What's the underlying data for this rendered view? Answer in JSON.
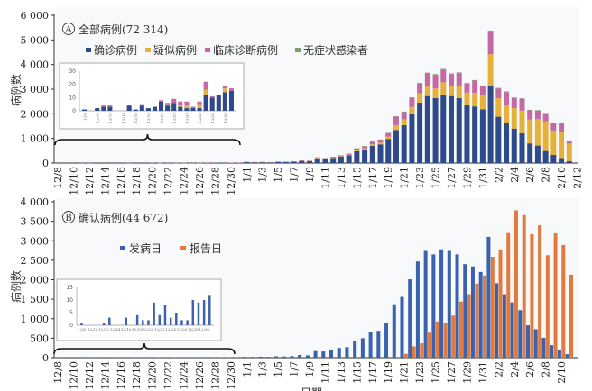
{
  "chart_data": [
    {
      "type": "bar",
      "stacked": true,
      "panel_letter": "A",
      "title": "全部病例(72 314)",
      "ylabel": "病例数",
      "ylim": [
        0,
        6000
      ],
      "yticks": [
        "0",
        "1 000",
        "2 000",
        "3 000",
        "4 000",
        "5 000",
        "6 000"
      ],
      "xticks": [
        "12/8",
        "12/10",
        "12/12",
        "12/14",
        "12/16",
        "12/18",
        "12/20",
        "12/22",
        "12/24",
        "12/26",
        "12/28",
        "12/30",
        "1/1",
        "1/3",
        "1/5",
        "1/7",
        "1/9",
        "1/11",
        "1/13",
        "1/15",
        "1/17",
        "1/19",
        "1/21",
        "1/23",
        "1/25",
        "1/27",
        "1/29",
        "1/31",
        "2/2",
        "2/4",
        "2/6",
        "2/8",
        "2/10",
        "2/12"
      ],
      "legend_position": "top",
      "series": [
        {
          "name": "确诊病例",
          "color": "#2f4a8a",
          "values": [
            1,
            0,
            2,
            3,
            3,
            0,
            0,
            4,
            1,
            4,
            2,
            3,
            7,
            4,
            6,
            3,
            2,
            2,
            2,
            12,
            10,
            12,
            14,
            15,
            40,
            32,
            36,
            24,
            48,
            44,
            56,
            88,
            80,
            190,
            165,
            205,
            255,
            310,
            480,
            550,
            700,
            760,
            980,
            1340,
            1540,
            1980,
            2450,
            2720,
            2640,
            2780,
            2720,
            2640,
            2380,
            2300,
            2180,
            3120,
            1880,
            1610,
            1400,
            1210,
            800,
            710,
            490,
            330,
            200,
            80
          ]
        },
        {
          "name": "疑似病例",
          "color": "#e6b03c",
          "values": [
            0,
            0,
            0,
            0,
            0,
            0,
            0,
            0,
            0,
            0,
            0,
            0,
            0,
            1,
            0,
            1,
            2,
            0,
            3,
            4,
            0,
            0,
            3,
            0,
            3,
            2,
            3,
            2,
            4,
            3,
            5,
            8,
            7,
            15,
            12,
            15,
            20,
            25,
            40,
            50,
            60,
            70,
            90,
            200,
            230,
            300,
            380,
            420,
            390,
            500,
            400,
            480,
            480,
            550,
            580,
            1300,
            750,
            760,
            830,
            920,
            970,
            1070,
            1200,
            990,
            1080,
            710
          ]
        },
        {
          "name": "临床诊断病例",
          "color": "#c36aa5",
          "values": [
            0,
            0,
            0,
            1,
            1,
            0,
            0,
            0,
            0,
            1,
            0,
            0,
            1,
            1,
            3,
            3,
            3,
            1,
            2,
            6,
            1,
            0,
            2,
            2,
            7,
            6,
            6,
            4,
            8,
            8,
            9,
            14,
            13,
            25,
            23,
            30,
            35,
            45,
            70,
            80,
            110,
            120,
            150,
            340,
            300,
            365,
            390,
            500,
            550,
            510,
            495,
            535,
            365,
            495,
            370,
            930,
            395,
            515,
            405,
            480,
            370,
            350,
            320,
            300,
            340,
            90
          ]
        },
        {
          "name": "无症状感染者",
          "color": "#7f9b6b",
          "values": [
            0,
            0,
            0,
            0,
            0,
            0,
            0,
            0,
            0,
            0,
            0,
            0,
            0,
            0,
            0,
            0,
            0,
            0,
            0,
            0,
            0,
            0,
            0,
            0,
            0,
            0,
            0,
            0,
            0,
            0,
            0,
            0,
            0,
            2,
            2,
            2,
            3,
            3,
            5,
            5,
            6,
            6,
            8,
            20,
            20,
            25,
            30,
            30,
            30,
            30,
            25,
            25,
            25,
            25,
            20,
            30,
            25,
            25,
            25,
            20,
            20,
            20,
            20,
            20,
            20,
            10
          ]
        }
      ],
      "inset": {
        "ylim": [
          0,
          30
        ],
        "yticks": [
          "0",
          "10",
          "20",
          "30"
        ],
        "xticks": [
          "12/8",
          "12/10",
          "12/12",
          "12/14",
          "12/16",
          "12/18",
          "12/20",
          "12/22",
          "12/24",
          "12/26",
          "12/28",
          "12/30"
        ]
      }
    },
    {
      "type": "bar",
      "panel_letter": "B",
      "title": "确认病例(44 672)",
      "ylabel": "病例数",
      "xlabel": "日期",
      "ylim": [
        0,
        4000
      ],
      "yticks": [
        "0",
        "500",
        "1 000",
        "1 500",
        "2 000",
        "2 500",
        "3 000",
        "3 500",
        "4 000"
      ],
      "xticks": [
        "12/8",
        "12/10",
        "12/12",
        "12/14",
        "12/16",
        "12/18",
        "12/20",
        "12/22",
        "12/24",
        "12/26",
        "12/28",
        "12/30",
        "1/1",
        "1/3",
        "1/5",
        "1/7",
        "1/9",
        "1/11",
        "1/13",
        "1/15",
        "1/17",
        "1/19",
        "1/21",
        "1/23",
        "1/25",
        "1/27",
        "1/29",
        "1/31",
        "2/2",
        "2/4",
        "2/6",
        "2/8",
        "2/10"
      ],
      "legend_position": "top",
      "series": [
        {
          "name": "发病日",
          "color": "#3a62ad",
          "values": [
            1,
            0,
            0,
            0,
            1,
            3,
            0,
            0,
            3,
            0,
            4,
            2,
            2,
            9,
            4,
            8,
            3,
            5,
            2,
            2,
            10,
            9,
            10,
            12,
            20,
            20,
            25,
            20,
            35,
            30,
            40,
            70,
            60,
            170,
            160,
            190,
            250,
            270,
            440,
            500,
            650,
            690,
            890,
            1370,
            1560,
            2010,
            2470,
            2740,
            2650,
            2780,
            2740,
            2650,
            2400,
            2340,
            2200,
            3100,
            1910,
            1630,
            1420,
            1220,
            830,
            730,
            510,
            320,
            200,
            90
          ]
        },
        {
          "name": "报告日",
          "color": "#e27a3e",
          "values": [
            0,
            0,
            0,
            0,
            0,
            0,
            0,
            0,
            0,
            0,
            0,
            0,
            0,
            0,
            0,
            0,
            0,
            0,
            0,
            0,
            0,
            0,
            0,
            0,
            0,
            0,
            0,
            0,
            0,
            0,
            0,
            0,
            0,
            0,
            0,
            0,
            0,
            0,
            0,
            0,
            0,
            0,
            0,
            0,
            100,
            290,
            370,
            640,
            930,
            900,
            1080,
            1440,
            1630,
            1900,
            2110,
            2590,
            2780,
            3200,
            3780,
            3660,
            3170,
            3400,
            2630,
            3190,
            2890,
            2130
          ]
        }
      ],
      "inset": {
        "ylim": [
          0,
          15
        ],
        "yticks": [
          "0",
          "5",
          "10",
          "15"
        ],
        "xticks": [
          "12/8",
          "12/10",
          "12/12",
          "12/14",
          "12/16",
          "12/18",
          "12/20",
          "12/22",
          "12/24",
          "12/26",
          "12/28",
          "12/30"
        ]
      }
    }
  ]
}
